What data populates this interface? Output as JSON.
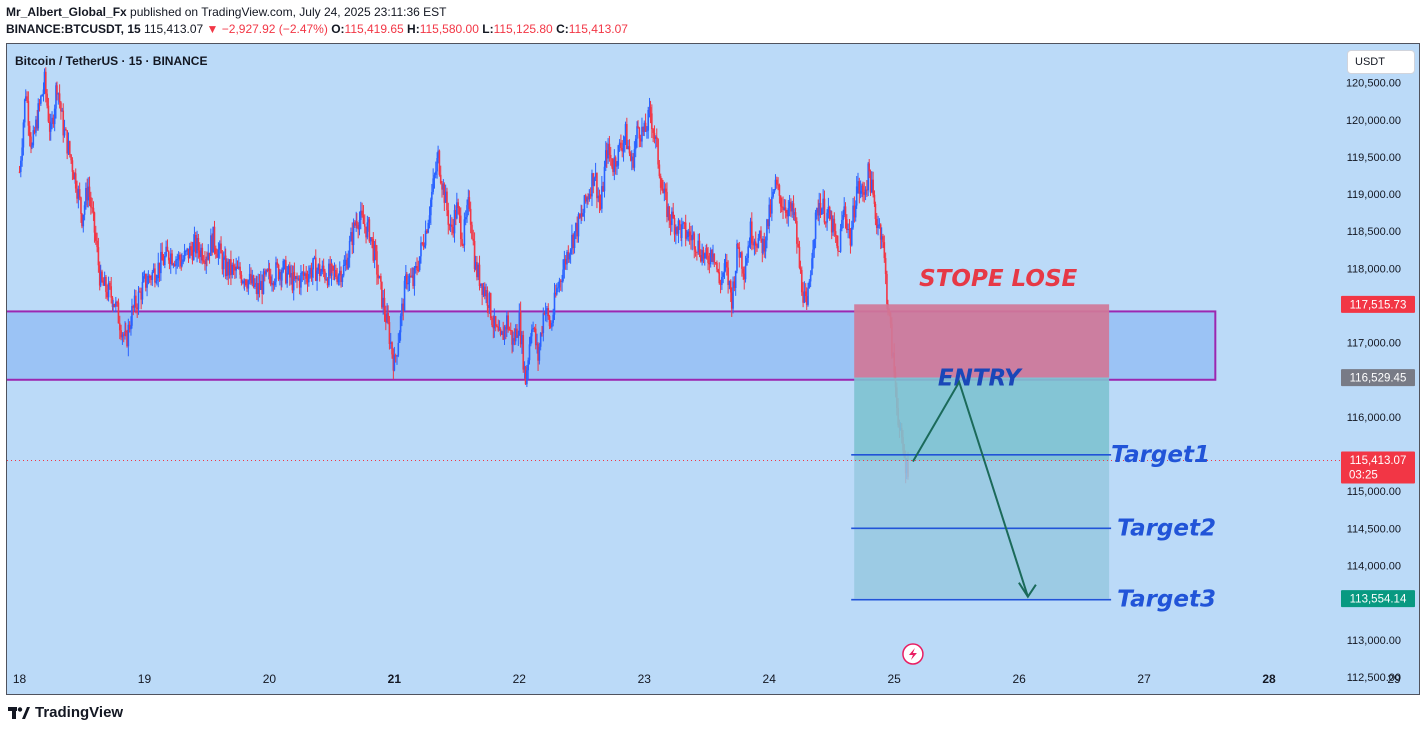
{
  "header": {
    "author": "Mr_Albert_Global_Fx",
    "published_text": "published on TradingView.com, July 24, 2025 23:11:36 EST",
    "symbol_line": "BINANCE:BTCUSDT, 15",
    "last_price": "115,413.07",
    "change": "▼ −2,927.92 (−2.47%)",
    "o_label": "O:",
    "o_value": "115,419.65",
    "h_label": "H:",
    "h_value": "115,580.00",
    "l_label": "L:",
    "l_value": "115,125.80",
    "c_label": "C:",
    "c_value": "115,413.07"
  },
  "chart_title": "Bitcoin / TetherUS · 15 · BINANCE",
  "currency_button": "USDT",
  "footer": {
    "brand": "TradingView",
    "logo_icon": "tradingview-logo-icon"
  },
  "colors": {
    "background": "#bbdaf8",
    "up": "#2962ff",
    "down": "#f23645",
    "zone_fill": "#9bc3f5",
    "zone_border": "#9c27b0",
    "stop_fill": "#d07898",
    "entry_fill": "#7ec2d0",
    "target_fill": "#97c8e0",
    "arrow": "#1b6a5a",
    "target_line": "#2154d8",
    "stop_text": "#e63946",
    "entry_text": "#1a47b8"
  },
  "chart_data": {
    "type": "candlestick",
    "symbol": "BTCUSDT",
    "exchange": "BINANCE",
    "interval": "15",
    "x_tick_labels": [
      "18",
      "19",
      "20",
      "21",
      "22",
      "23",
      "24",
      "25",
      "26",
      "27",
      "28",
      "29"
    ],
    "bold_x_ticks": [
      "21",
      "28"
    ],
    "y_tick_labels": [
      "120,500.00",
      "120,000.00",
      "119,500.00",
      "119,000.00",
      "118,500.00",
      "118,000.00",
      "117,000.00",
      "116,000.00",
      "115,000.00",
      "114,500.00",
      "114,000.00",
      "113,000.00",
      "112,500.00"
    ],
    "ylim": [
      112270,
      121020
    ],
    "xlim": [
      17.9,
      29.2
    ],
    "close_path": [
      [
        18.0,
        119.3
      ],
      [
        18.05,
        120.4
      ],
      [
        18.1,
        119.6
      ],
      [
        18.15,
        120.1
      ],
      [
        18.2,
        120.5
      ],
      [
        18.25,
        119.8
      ],
      [
        18.3,
        120.5
      ],
      [
        18.35,
        119.9
      ],
      [
        18.45,
        119.2
      ],
      [
        18.5,
        118.7
      ],
      [
        18.55,
        119.1
      ],
      [
        18.6,
        118.5
      ],
      [
        18.65,
        117.8
      ],
      [
        18.75,
        117.6
      ],
      [
        18.85,
        117.0
      ],
      [
        18.9,
        117.4
      ],
      [
        19.0,
        117.8
      ],
      [
        19.1,
        118.0
      ],
      [
        19.2,
        118.2
      ],
      [
        19.3,
        118.1
      ],
      [
        19.4,
        118.3
      ],
      [
        19.5,
        118.2
      ],
      [
        19.55,
        118.4
      ],
      [
        19.65,
        118.0
      ],
      [
        19.8,
        117.9
      ],
      [
        19.9,
        117.7
      ],
      [
        20.0,
        117.9
      ],
      [
        20.1,
        118.0
      ],
      [
        20.2,
        117.8
      ],
      [
        20.35,
        118.0
      ],
      [
        20.5,
        117.9
      ],
      [
        20.6,
        118.0
      ],
      [
        20.7,
        118.7
      ],
      [
        20.8,
        118.5
      ],
      [
        20.85,
        118.1
      ],
      [
        20.9,
        117.6
      ],
      [
        20.95,
        117.2
      ],
      [
        21.0,
        116.7
      ],
      [
        21.05,
        117.3
      ],
      [
        21.1,
        117.9
      ],
      [
        21.15,
        117.8
      ],
      [
        21.25,
        118.5
      ],
      [
        21.3,
        119.0
      ],
      [
        21.35,
        119.5
      ],
      [
        21.4,
        119.0
      ],
      [
        21.45,
        118.5
      ],
      [
        21.5,
        118.8
      ],
      [
        21.55,
        118.4
      ],
      [
        21.6,
        118.9
      ],
      [
        21.65,
        118.0
      ],
      [
        21.75,
        117.6
      ],
      [
        21.8,
        117.2
      ],
      [
        21.85,
        117.0
      ],
      [
        21.9,
        117.3
      ],
      [
        21.95,
        117.0
      ],
      [
        22.0,
        117.3
      ],
      [
        22.05,
        116.5
      ],
      [
        22.1,
        117.3
      ],
      [
        22.15,
        116.8
      ],
      [
        22.2,
        117.5
      ],
      [
        22.25,
        117.2
      ],
      [
        22.3,
        117.7
      ],
      [
        22.35,
        118.0
      ],
      [
        22.4,
        118.3
      ],
      [
        22.5,
        118.7
      ],
      [
        22.55,
        119.0
      ],
      [
        22.6,
        119.3
      ],
      [
        22.65,
        118.8
      ],
      [
        22.7,
        119.6
      ],
      [
        22.75,
        119.4
      ],
      [
        22.85,
        119.8
      ],
      [
        22.9,
        119.4
      ],
      [
        22.95,
        119.9
      ],
      [
        23.0,
        119.8
      ],
      [
        23.05,
        120.1
      ],
      [
        23.1,
        119.6
      ],
      [
        23.15,
        119.0
      ],
      [
        23.2,
        118.7
      ],
      [
        23.3,
        118.5
      ],
      [
        23.4,
        118.4
      ],
      [
        23.5,
        118.1
      ],
      [
        23.55,
        118.3
      ],
      [
        23.6,
        117.8
      ],
      [
        23.65,
        118.0
      ],
      [
        23.7,
        117.6
      ],
      [
        23.75,
        118.3
      ],
      [
        23.8,
        118.0
      ],
      [
        23.85,
        118.5
      ],
      [
        23.95,
        118.3
      ],
      [
        24.0,
        118.7
      ],
      [
        24.05,
        119.1
      ],
      [
        24.1,
        118.9
      ],
      [
        24.2,
        118.7
      ],
      [
        24.25,
        117.9
      ],
      [
        24.3,
        117.4
      ],
      [
        24.35,
        118.4
      ],
      [
        24.4,
        118.9
      ],
      [
        24.5,
        118.6
      ],
      [
        24.55,
        118.2
      ],
      [
        24.6,
        118.8
      ],
      [
        24.65,
        118.4
      ],
      [
        24.7,
        119.1
      ],
      [
        24.75,
        119.0
      ],
      [
        24.8,
        119.3
      ],
      [
        24.85,
        118.7
      ],
      [
        24.9,
        118.5
      ],
      [
        24.95,
        117.5
      ],
      [
        25.0,
        116.6
      ],
      [
        25.05,
        115.7
      ],
      [
        25.1,
        115.3
      ],
      [
        25.12,
        115.4
      ]
    ],
    "last_price": 115413.07,
    "price_labels": [
      {
        "label": "117,515.73",
        "value": 117515.73,
        "role": "stop",
        "color": "#f23645"
      },
      {
        "label": "116,529.45",
        "value": 116529.45,
        "role": "entry",
        "color": "#787b86"
      },
      {
        "label": "115,413.07",
        "sublabel": "03:25",
        "value": 115413.07,
        "role": "last",
        "color": "#f23645"
      },
      {
        "label": "113,554.14",
        "value": 113554.14,
        "role": "target",
        "color": "#089981"
      }
    ],
    "demand_zone": {
      "x_start": 17.9,
      "x_end": 27.57,
      "y_low": 116500,
      "y_high": 117420
    },
    "position": {
      "type": "short",
      "x_start": 24.68,
      "x_end": 26.72,
      "stop": 117515.73,
      "entry": 116529.45,
      "target": 113554.14
    },
    "targets": [
      {
        "label": "Target1",
        "value": 115490
      },
      {
        "label": "Target2",
        "value": 114500
      },
      {
        "label": "Target3",
        "value": 113540
      }
    ],
    "annotations": [
      {
        "text": "STOPE LOSE",
        "x": 25.2,
        "y": 117760
      },
      {
        "text": "ENTRY",
        "x": 25.35,
        "y": 116420
      }
    ],
    "arrow_path": [
      [
        25.15,
        115400
      ],
      [
        25.52,
        116470
      ],
      [
        26.07,
        113580
      ]
    ],
    "event_marker_x": 25.15
  }
}
